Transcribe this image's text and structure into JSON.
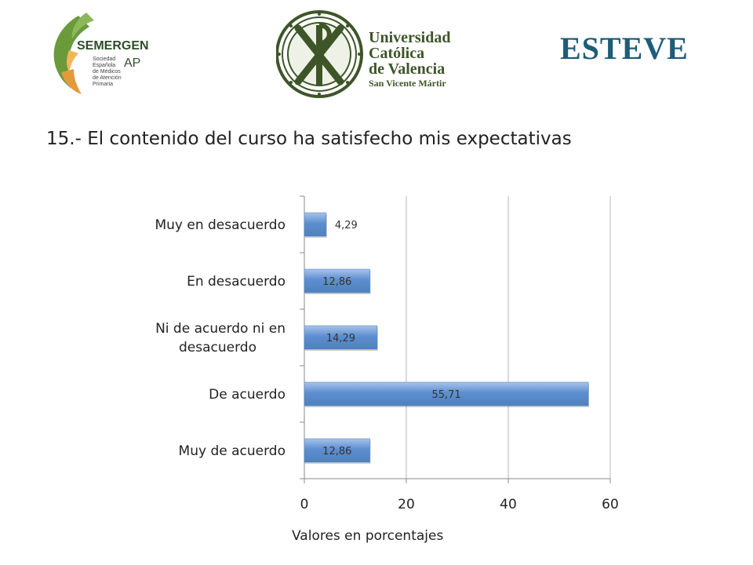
{
  "logos": {
    "semergen": {
      "brand": "SEMERGEN",
      "suffix": "AP",
      "subtitle": "Sociedad\nEspañola\nde Médicos\nde Atención\nPrimaria"
    },
    "ucv": {
      "name": "Universidad\nCatólica\nde Valencia",
      "subtitle": "San Vicente Mártir"
    },
    "esteve": {
      "wordmark": "ESTEVE"
    }
  },
  "colors": {
    "bar_fill": "#4f81bd",
    "bar_highlight": "#a7c3ea",
    "grid": "#b7b7b7",
    "semergen_green": "#6a9a3a",
    "semergen_orange": "#e39a3b",
    "ucv_green": "#3e5528",
    "esteve_blue": "#1d5d78"
  },
  "chart_data": {
    "type": "bar",
    "orientation": "horizontal",
    "title": "15.- El contenido del curso ha satisfecho mis expectativas",
    "categories": [
      "Muy en desacuerdo",
      "En desacuerdo",
      "Ni de acuerdo ni en desacuerdo",
      "De acuerdo",
      "Muy de acuerdo"
    ],
    "category_lines": [
      [
        "Muy en desacuerdo"
      ],
      [
        "En desacuerdo"
      ],
      [
        "Ni de acuerdo ni en",
        "desacuerdo"
      ],
      [
        "De acuerdo"
      ],
      [
        "Muy de acuerdo"
      ]
    ],
    "values": [
      4.29,
      12.86,
      14.29,
      55.71,
      12.86
    ],
    "data_labels": [
      "4,29",
      "12,86",
      "14,29",
      "55,71",
      "12,86"
    ],
    "xlabel": "Valores en porcentajes",
    "ylabel": "",
    "xlim": [
      0,
      60
    ],
    "xticks": [
      0,
      20,
      40,
      60
    ],
    "xtick_labels": [
      "0",
      "20",
      "40",
      "60"
    ],
    "grid": true
  }
}
